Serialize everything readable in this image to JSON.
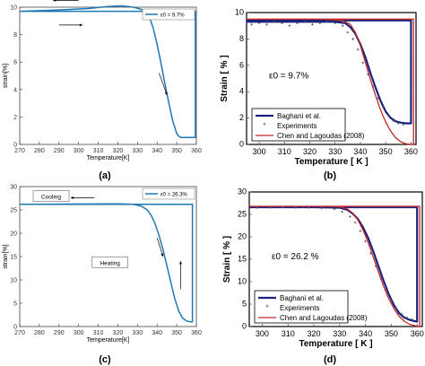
{
  "chart_data": [
    {
      "panel_label": "(a)",
      "type": "line",
      "xlabel": "Temperature[K]",
      "ylabel": "strain[%]",
      "xlim": [
        270,
        360
      ],
      "ylim": [
        0,
        10
      ],
      "xticks": [
        270,
        280,
        290,
        300,
        310,
        320,
        330,
        340,
        350,
        360
      ],
      "yticks": [
        0,
        2,
        4,
        6,
        8,
        10
      ],
      "grid": false,
      "legend_position": "top-right",
      "legend": [
        "ε0 = 9.7%"
      ],
      "series": [
        {
          "name": "ε0 = 9.7%",
          "color": "#1f77b4",
          "x": [
            270,
            290,
            305,
            315,
            322,
            328,
            333,
            336,
            338,
            340,
            342,
            344,
            346,
            348,
            350,
            351,
            352,
            353,
            355,
            357,
            358,
            359.5,
            359.5,
            270
          ],
          "y": [
            9.7,
            9.8,
            9.9,
            10.05,
            10.1,
            10.0,
            9.8,
            9.3,
            8.5,
            7.3,
            5.9,
            4.4,
            3.0,
            1.7,
            0.8,
            0.6,
            0.5,
            0.5,
            0.5,
            0.5,
            0.5,
            0.5,
            9.7,
            9.7
          ]
        }
      ]
    },
    {
      "panel_label": "(b)",
      "type": "line",
      "xlabel": "Temperature [ K ]",
      "ylabel": "Strain [ % ]",
      "xlim": [
        295,
        362
      ],
      "ylim": [
        0,
        10
      ],
      "xticks": [
        300,
        310,
        320,
        330,
        340,
        350,
        360
      ],
      "yticks": [
        0,
        2,
        4,
        6,
        8,
        10
      ],
      "grid": false,
      "annotation": "ε0 = 9.7%",
      "legend_position": "bottom-left",
      "legend": [
        "Baghani et al.",
        "Experiments",
        "Chen and Lagoudas (2008)"
      ],
      "series": [
        {
          "name": "Baghani et al.",
          "color": "#1a237e",
          "x": [
            295,
            320,
            330,
            334,
            336,
            338,
            340,
            342,
            344,
            346,
            348,
            350,
            352,
            354,
            356,
            358,
            360,
            360,
            295
          ],
          "y": [
            9.3,
            9.3,
            9.3,
            9.2,
            8.9,
            8.4,
            7.6,
            6.6,
            5.4,
            4.3,
            3.3,
            2.5,
            2.0,
            1.75,
            1.65,
            1.6,
            1.6,
            9.4,
            9.4
          ]
        },
        {
          "name": "Experiments",
          "color": "#1a237e",
          "x": [
            297,
            300,
            303,
            306,
            309,
            312,
            315,
            318,
            321,
            324,
            327,
            330,
            333,
            335,
            337,
            339,
            341,
            343,
            345,
            347,
            349,
            351,
            353,
            355,
            357
          ],
          "y": [
            9.1,
            9.2,
            9.1,
            9.3,
            9.2,
            9.0,
            9.2,
            9.3,
            9.1,
            9.2,
            9.3,
            9.2,
            9.0,
            8.5,
            8.0,
            7.2,
            6.2,
            5.3,
            4.4,
            3.5,
            2.8,
            2.2,
            1.8,
            1.6,
            1.5
          ]
        },
        {
          "name": "Chen and Lagoudas (2008)",
          "color": "#c62828",
          "x": [
            295,
            325,
            333,
            336,
            338,
            340,
            342,
            344,
            346,
            348,
            350,
            352,
            354,
            356,
            358,
            360,
            361,
            361,
            295
          ],
          "y": [
            9.5,
            9.5,
            9.4,
            9.1,
            8.5,
            7.5,
            6.2,
            4.9,
            3.7,
            2.6,
            1.7,
            1.0,
            0.5,
            0.2,
            0.05,
            0.0,
            0.0,
            9.5,
            9.5
          ]
        }
      ]
    },
    {
      "panel_label": "(c)",
      "type": "line",
      "xlabel": "Temperature[K]",
      "ylabel": "strain[%]",
      "xlim": [
        270,
        360
      ],
      "ylim": [
        0,
        30
      ],
      "xticks": [
        270,
        280,
        290,
        300,
        310,
        320,
        330,
        340,
        350,
        360
      ],
      "yticks": [
        0,
        5,
        10,
        15,
        20,
        25,
        30
      ],
      "grid": false,
      "legend_position": "top-right",
      "legend": [
        "ε0 = 26.3%"
      ],
      "labels": [
        "Cooling",
        "Heating"
      ],
      "series": [
        {
          "name": "ε0 = 26.3%",
          "color": "#1f77b4",
          "x": [
            270,
            320,
            328,
            332,
            335,
            337,
            339,
            341,
            343,
            345,
            347,
            349,
            351,
            353,
            355,
            357,
            358,
            358,
            270
          ],
          "y": [
            26.2,
            26.3,
            26.2,
            25.8,
            25.0,
            23.8,
            22.0,
            19.5,
            16.5,
            13.0,
            9.5,
            6.0,
            3.3,
            1.8,
            1.2,
            1.0,
            1.0,
            26.2,
            26.2
          ]
        }
      ]
    },
    {
      "panel_label": "(d)",
      "type": "line",
      "xlabel": "Temperature [ K ]",
      "ylabel": "Strain [ % ]",
      "xlim": [
        295,
        362
      ],
      "ylim": [
        0,
        30
      ],
      "xticks": [
        300,
        310,
        320,
        330,
        340,
        350,
        360
      ],
      "yticks": [
        0,
        5,
        10,
        15,
        20,
        25,
        30
      ],
      "grid": false,
      "annotation": "ε0 = 26.2 %",
      "legend_position": "bottom-left",
      "legend": [
        "Baghani et al.",
        "Experiments",
        "Chen and Lagoudas (2008)"
      ],
      "series": [
        {
          "name": "Baghani et al.",
          "color": "#1a237e",
          "x": [
            295,
            320,
            330,
            333,
            335,
            337,
            339,
            341,
            343,
            345,
            347,
            349,
            351,
            353,
            355,
            357,
            359,
            360,
            360,
            295
          ],
          "y": [
            26.6,
            26.6,
            26.5,
            26.0,
            25.2,
            24.0,
            22.2,
            19.8,
            16.8,
            13.5,
            10.2,
            7.2,
            4.8,
            3.0,
            2.0,
            1.5,
            1.2,
            1.1,
            26.6,
            26.6
          ]
        },
        {
          "name": "Experiments",
          "color": "#1a237e",
          "x": [
            298,
            303,
            308,
            313,
            318,
            323,
            328,
            331,
            334,
            336,
            338,
            340,
            342,
            344,
            346,
            348,
            350,
            352,
            354,
            356,
            358
          ],
          "y": [
            26.5,
            26.5,
            26.6,
            26.5,
            26.5,
            26.4,
            26.2,
            25.6,
            24.5,
            23.2,
            21.3,
            19.0,
            16.3,
            13.5,
            10.6,
            8.0,
            5.8,
            4.0,
            2.8,
            2.0,
            1.6
          ]
        },
        {
          "name": "Chen and Lagoudas (2008)",
          "color": "#c62828",
          "x": [
            295,
            325,
            330,
            333,
            335,
            337,
            339,
            341,
            343,
            345,
            347,
            349,
            351,
            353,
            355,
            357,
            359,
            361,
            361,
            295
          ],
          "y": [
            26.8,
            26.8,
            26.7,
            26.2,
            25.3,
            23.8,
            21.6,
            18.8,
            15.5,
            12.2,
            9.0,
            6.2,
            4.0,
            2.3,
            1.2,
            0.5,
            0.2,
            0.05,
            26.8,
            26.8
          ]
        }
      ]
    }
  ]
}
